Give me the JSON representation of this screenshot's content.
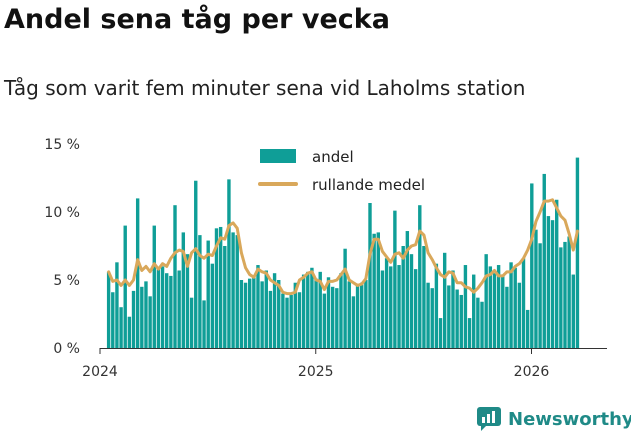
{
  "header": {
    "title": "Andel sena tåg per vecka",
    "subtitle": "Tåg som varit fem minuter sena vid Laholms station"
  },
  "brand": {
    "name": "Newsworthy"
  },
  "colors": {
    "bar": "#0f9e97",
    "line": "#d9a85b",
    "axis": "#333333",
    "brand": "#1f8a87"
  },
  "chart_data": {
    "type": "bar",
    "title": "Andel sena tåg per vecka",
    "subtitle": "Tåg som varit fem minuter sena vid Laholms station",
    "xlabel": "",
    "ylabel": "",
    "ylim": [
      0,
      15
    ],
    "yticks": [
      0,
      5,
      10,
      15
    ],
    "ytick_labels": [
      "0 %",
      "5 %",
      "10 %",
      "15 %"
    ],
    "xlim": [
      2024.0,
      2026.35
    ],
    "xticks": [
      2024,
      2025,
      2026
    ],
    "xtick_labels": [
      "2024",
      "2025",
      "2026"
    ],
    "grid": false,
    "legend": {
      "position": "top-center",
      "entries": [
        "andel",
        "rullande medel"
      ]
    },
    "series": [
      {
        "name": "andel",
        "type": "bar",
        "start": 2024.04,
        "step": 0.01923,
        "values": [
          5.6,
          4.1,
          6.3,
          3.0,
          9.0,
          2.3,
          4.2,
          11.0,
          4.5,
          4.9,
          3.8,
          9.0,
          5.8,
          6.0,
          5.5,
          5.3,
          10.5,
          5.7,
          8.5,
          6.9,
          3.7,
          12.3,
          8.3,
          3.5,
          7.9,
          6.2,
          8.8,
          8.9,
          7.5,
          12.4,
          8.5,
          8.3,
          5.0,
          4.8,
          5.1,
          5.3,
          6.1,
          4.9,
          5.7,
          4.2,
          5.5,
          5.0,
          4.0,
          3.7,
          3.9,
          4.8,
          4.1,
          5.4,
          5.6,
          5.9,
          5.1,
          5.6,
          4.0,
          5.2,
          4.5,
          4.4,
          5.5,
          7.3,
          4.9,
          3.8,
          4.6,
          4.8,
          5.0,
          10.7,
          8.4,
          8.5,
          5.7,
          6.6,
          6.0,
          10.1,
          6.1,
          7.5,
          8.6,
          6.9,
          5.8,
          10.5,
          7.5,
          4.8,
          4.4,
          6.2,
          2.2,
          7.0,
          4.6,
          5.7,
          4.3,
          3.9,
          6.1,
          2.2,
          5.4,
          3.7,
          3.4,
          6.9,
          6.0,
          5.5,
          6.1,
          5.4,
          4.5,
          6.3,
          5.9,
          4.8,
          6.6,
          2.8,
          12.1,
          8.7,
          7.7,
          12.8,
          9.7,
          9.4,
          10.9,
          7.4,
          7.8,
          8.2,
          5.4,
          14.0
        ]
      },
      {
        "name": "rullande medel",
        "type": "line",
        "start": 2024.04,
        "step": 0.01923,
        "values": [
          5.6,
          4.9,
          5.0,
          4.6,
          5.0,
          4.6,
          5.0,
          6.5,
          5.7,
          6.0,
          5.6,
          6.2,
          5.8,
          6.2,
          6.0,
          6.6,
          7.0,
          7.2,
          7.1,
          6.0,
          7.0,
          7.3,
          6.8,
          6.6,
          6.9,
          6.8,
          7.5,
          8.1,
          8.0,
          9.0,
          9.2,
          8.8,
          7.0,
          5.9,
          5.4,
          5.2,
          5.8,
          5.6,
          5.5,
          5.0,
          4.8,
          4.6,
          4.1,
          4.0,
          4.0,
          4.1,
          5.0,
          5.2,
          5.5,
          5.6,
          5.0,
          4.9,
          4.3,
          4.9,
          4.9,
          5.0,
          5.4,
          5.8,
          5.0,
          4.8,
          4.6,
          4.7,
          5.1,
          6.9,
          8.0,
          8.0,
          7.1,
          6.7,
          6.3,
          6.9,
          7.0,
          6.6,
          7.2,
          7.5,
          7.6,
          8.6,
          8.3,
          7.0,
          6.5,
          5.9,
          5.4,
          5.2,
          5.6,
          5.5,
          4.8,
          4.8,
          4.5,
          4.4,
          4.1,
          4.4,
          4.8,
          5.3,
          5.4,
          5.7,
          5.3,
          5.3,
          5.6,
          5.6,
          6.0,
          6.2,
          6.6,
          7.2,
          8.0,
          9.3,
          10.0,
          10.8,
          10.8,
          10.9,
          10.3,
          9.7,
          9.4,
          8.4,
          7.2,
          8.6
        ]
      }
    ]
  }
}
